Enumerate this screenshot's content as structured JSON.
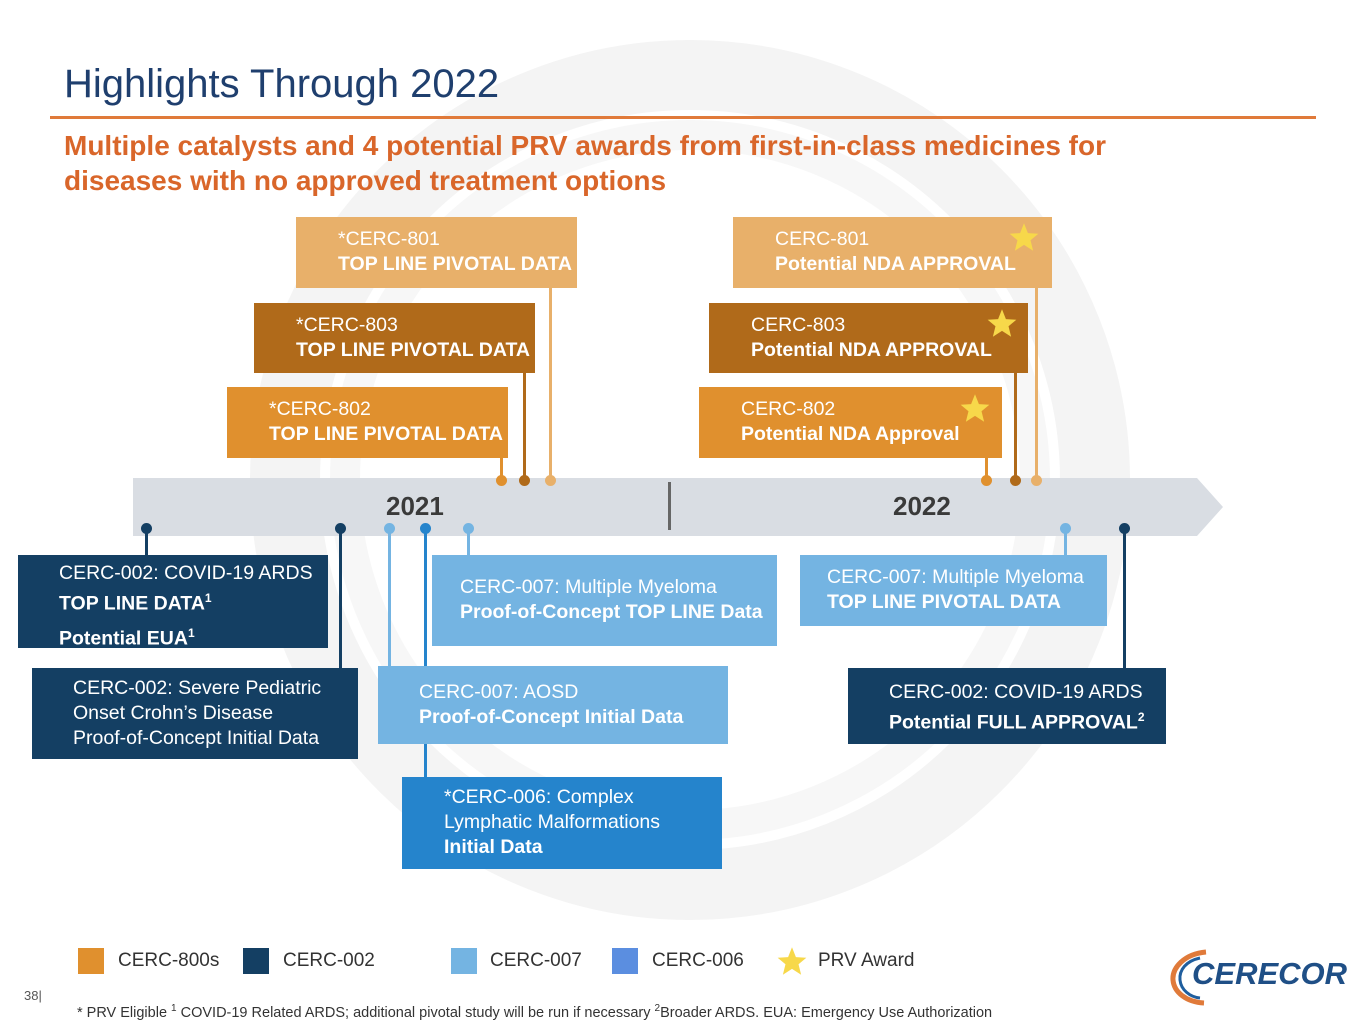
{
  "title": "Highlights Through 2022",
  "subtitle": {
    "line1": "Multiple catalysts and 4 potential PRV awards from first-in-class medicines for",
    "line2": "diseases with no approved treatment options"
  },
  "timeline": {
    "year_2021": "2021",
    "year_2022": "2022"
  },
  "upper_boxes": {
    "cerc801_2021": {
      "l1": "*CERC-801",
      "l2": "TOP LINE PIVOTAL DATA"
    },
    "cerc803_2021": {
      "l1": "*CERC-803",
      "l2": "TOP LINE PIVOTAL DATA"
    },
    "cerc802_2021": {
      "l1": "*CERC-802",
      "l2": "TOP LINE PIVOTAL DATA"
    },
    "cerc801_2022": {
      "l1": "CERC-801",
      "l2": "Potential NDA APPROVAL"
    },
    "cerc803_2022": {
      "l1": "CERC-803",
      "l2": "Potential NDA APPROVAL"
    },
    "cerc802_2022": {
      "l1": "CERC-802",
      "l2": "Potential NDA Approval"
    }
  },
  "lower_boxes": {
    "covid_ards_2021": {
      "l1": "CERC-002: COVID-19 ARDS",
      "l2": "TOP LINE DATA",
      "l2_sup": "1",
      "l3": "Potential EUA",
      "l3_sup": "1"
    },
    "crohns": {
      "l1": "CERC-002: Severe Pediatric",
      "l2": "Onset Crohn’s Disease",
      "l3": "Proof-of-Concept Initial Data"
    },
    "myeloma_2021": {
      "l1": "CERC-007: Multiple Myeloma",
      "l2": "Proof-of-Concept TOP LINE Data"
    },
    "aosd": {
      "l1": "CERC-007: AOSD",
      "l2": "Proof-of-Concept Initial Data"
    },
    "lymphatic": {
      "l1": "*CERC-006: Complex",
      "l2": "Lymphatic Malformations",
      "l3": "Initial Data"
    },
    "myeloma_2022": {
      "l1": "CERC-007: Multiple Myeloma",
      "l2": "TOP LINE PIVOTAL DATA"
    },
    "covid_ards_2022": {
      "l1": "CERC-002: COVID-19 ARDS",
      "l2": "Potential FULL APPROVAL",
      "l2_sup": "2"
    }
  },
  "legend": {
    "cerc800": "CERC-800s",
    "cerc002": "CERC-002",
    "cerc007": "CERC-007",
    "cerc006": "CERC-006",
    "prv": "PRV Award"
  },
  "footnote": {
    "p1": "* PRV Eligible ",
    "s1": "1",
    "p2": " COVID-19 Related ARDS; additional pivotal study will be run if necessary ",
    "s2": "2",
    "p3": "Broader ARDS. EUA: Emergency Use Authorization"
  },
  "page_number": "38|",
  "logo_text": "CERECOR",
  "colors": {
    "title": "#1f3f6e",
    "subtitle": "#d9662a",
    "cerc800_light": "#e8b06a",
    "cerc800_dark": "#b06a1a",
    "cerc800_mid": "#e0902e",
    "cerc002": "#143f63",
    "cerc007": "#74b4e2",
    "cerc006": "#2584cc",
    "legend_cerc006": "#5b8ee0",
    "star": "#f7d84a",
    "timeline": "#d9dde3"
  },
  "icons": [
    "star-icon",
    "cerecor-logo"
  ]
}
